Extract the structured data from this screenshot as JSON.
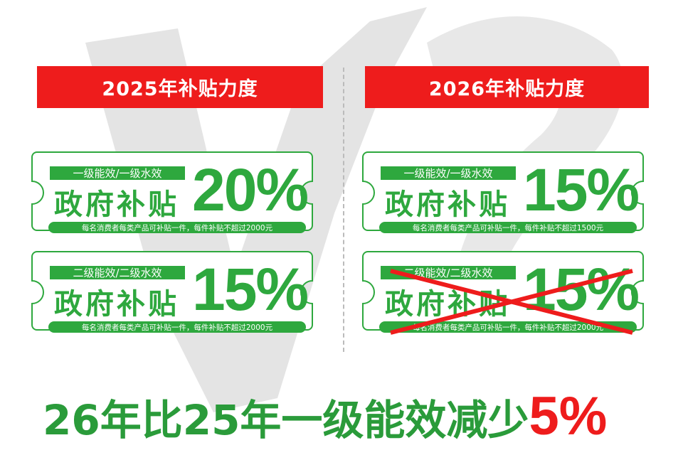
{
  "colors": {
    "green": "#2ea83e",
    "red": "#ee1c1c",
    "background_mark": "#e2e2e2"
  },
  "left": {
    "header": "2025年补贴力度",
    "coupons": [
      {
        "label": "一级能效/一级水效",
        "title": "政府补贴",
        "percent": "20%",
        "caption": "每名消费者每类产品可补贴一件，每件补贴不超过2000元"
      },
      {
        "label": "二级能效/二级水效",
        "title": "政府补贴",
        "percent": "15%",
        "caption": "每名消费者每类产品可补贴一件，每件补贴不超过2000元"
      }
    ]
  },
  "right": {
    "header": "2026年补贴力度",
    "coupons": [
      {
        "label": "一级能效/一级水效",
        "title": "政府补贴",
        "percent": "15%",
        "caption": "每名消费者每类产品可补贴一件，每件补贴不超过1500元"
      },
      {
        "label": "二级能效/二级水效",
        "title": "政府补贴",
        "percent": "15%",
        "caption": "每名消费者每类产品可补贴一件，每件补贴不超过2000元",
        "crossed_out": true
      }
    ]
  },
  "conclusion": {
    "text": "26年比25年一级能效减少",
    "highlight": "5%"
  }
}
